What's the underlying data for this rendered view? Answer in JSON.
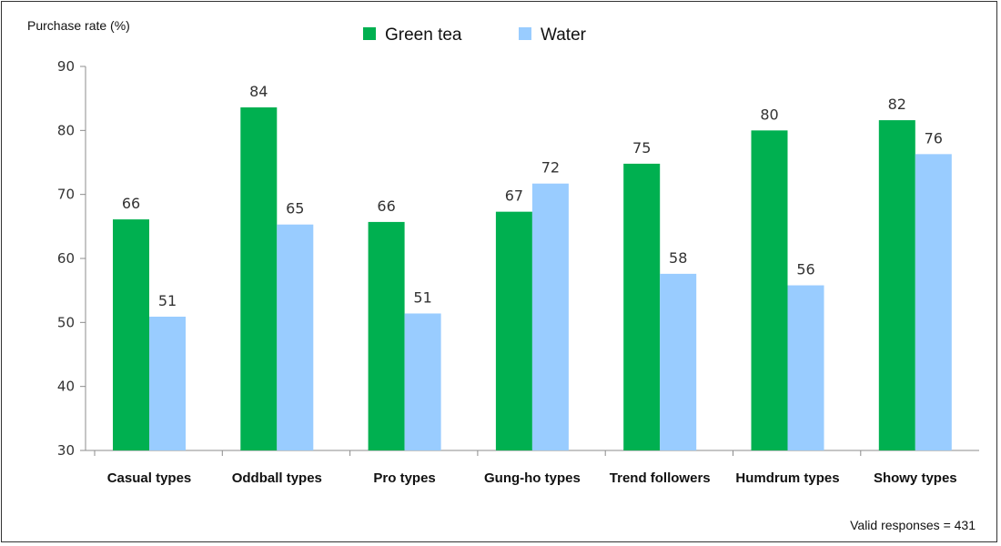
{
  "chart_data": {
    "type": "bar",
    "ylabel": "Purchase rate (%)",
    "categories": [
      "Casual types",
      "Oddball types",
      "Pro types",
      "Gung-ho types",
      "Trend followers",
      "Humdrum types",
      "Showy types"
    ],
    "series": [
      {
        "name": "Green tea",
        "color": "#00b050",
        "values": [
          66,
          84,
          66,
          67,
          75,
          80,
          82
        ]
      },
      {
        "name": "Water",
        "color": "#99ccff",
        "values": [
          51,
          65,
          51,
          72,
          58,
          56,
          76
        ]
      }
    ],
    "bar_heights_exact": {
      "Green tea": [
        66.1,
        83.6,
        65.7,
        67.3,
        74.8,
        80.0,
        81.6
      ],
      "Water": [
        50.9,
        65.3,
        51.4,
        71.7,
        57.6,
        55.8,
        76.3
      ]
    },
    "ylim": [
      30,
      90
    ],
    "yticks": [
      30,
      40,
      50,
      60,
      70,
      80,
      90
    ],
    "grid": false,
    "legend_position": "top-center",
    "note": "Valid responses = 431"
  }
}
